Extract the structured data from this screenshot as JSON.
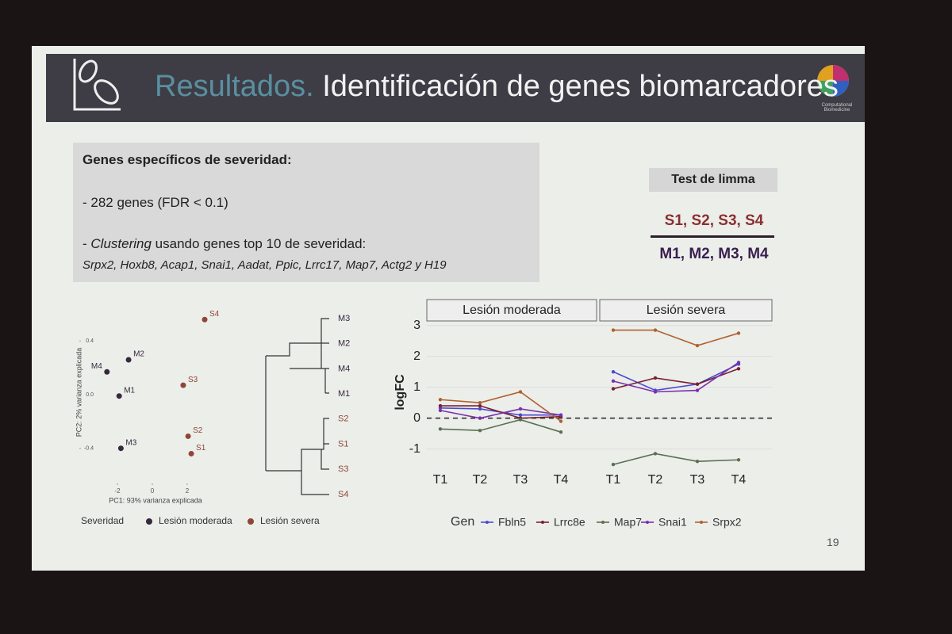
{
  "header": {
    "title_prefix": "Resultados.",
    "title": "Identificación de genes biomarcadores",
    "logo_text": "Computational Biomedicine"
  },
  "box": {
    "heading": "Genes específicos de severidad:",
    "line1": "- 282 genes (FDR < 0.1)",
    "line2_prefix": "- ",
    "line2_italic": "Clustering",
    "line2_rest": " usando genes top 10 de severidad:",
    "genes": "Srpx2, Hoxb8, Acap1, Snai1, Aadat, Ppic, Lrrc17, Map7, Actg2 y H19"
  },
  "limma": {
    "label": "Test de limma",
    "numerator": "S1, S2, S3, S4",
    "denominator": "M1, M2, M3, M4"
  },
  "pca": {
    "type": "scatter",
    "xlabel": "PC1: 93% varianza explicada",
    "ylabel": "PC2: 2% varianza explicada",
    "xlim": [
      -4,
      3.5
    ],
    "ylim": [
      -0.65,
      0.65
    ],
    "xticks": [
      -2,
      0,
      2
    ],
    "yticks": [
      -0.4,
      {
        "value": 0,
        "label": "0.0"
      },
      0.4
    ],
    "legend_title": "Severidad",
    "groups": [
      {
        "name": "Lesión moderada",
        "color": "#35283f"
      },
      {
        "name": "Lesión severa",
        "color": "#8e4636"
      }
    ],
    "points": [
      {
        "label": "M4",
        "x": -2.6,
        "y": 0.17,
        "group": 0
      },
      {
        "label": "M2",
        "x": -1.36,
        "y": 0.26,
        "group": 0
      },
      {
        "label": "M1",
        "x": -1.9,
        "y": -0.01,
        "group": 0
      },
      {
        "label": "M3",
        "x": -1.8,
        "y": -0.4,
        "group": 0
      },
      {
        "label": "S4",
        "x": 3.0,
        "y": 0.56,
        "group": 1
      },
      {
        "label": "S3",
        "x": 1.77,
        "y": 0.07,
        "group": 1
      },
      {
        "label": "S2",
        "x": 2.05,
        "y": -0.31,
        "group": 1
      },
      {
        "label": "S1",
        "x": 2.23,
        "y": -0.44,
        "group": 1
      }
    ]
  },
  "dendrogram": {
    "leaves": [
      "M3",
      "M2",
      "M4",
      "M1",
      "S2",
      "S1",
      "S3",
      "S4"
    ]
  },
  "lines": {
    "type": "line",
    "ylabel": "logFC",
    "facets": [
      "Lesión moderada",
      "Lesión severa"
    ],
    "categories": [
      "T1",
      "T2",
      "T3",
      "T4"
    ],
    "ylim": [
      -1.6,
      3.3
    ],
    "yticks": [
      -1,
      0,
      1,
      2,
      3
    ],
    "legend_title": "Gen",
    "series": [
      {
        "name": "Fbln5",
        "color": "#4a4ad0",
        "values": [
          [
            0.33,
            0.3,
            0.1,
            0.1
          ],
          [
            1.5,
            0.9,
            1.1,
            1.75
          ]
        ]
      },
      {
        "name": "Lrrc8e",
        "color": "#7a2030",
        "values": [
          [
            0.4,
            0.4,
            0.0,
            0.05
          ],
          [
            0.95,
            1.3,
            1.1,
            1.6
          ]
        ]
      },
      {
        "name": "Map7",
        "color": "#5a7050",
        "values": [
          [
            -0.35,
            -0.4,
            -0.05,
            -0.45
          ],
          [
            -1.5,
            -1.15,
            -1.4,
            -1.35
          ]
        ]
      },
      {
        "name": "Snai1",
        "color": "#7a30b0",
        "values": [
          [
            0.25,
            0.0,
            0.3,
            0.1
          ],
          [
            1.2,
            0.85,
            0.9,
            1.8
          ]
        ]
      },
      {
        "name": "Srpx2",
        "color": "#b06030",
        "values": [
          [
            0.6,
            0.5,
            0.85,
            -0.1
          ],
          [
            2.85,
            2.85,
            2.35,
            2.75
          ]
        ]
      }
    ]
  },
  "page_number": "19"
}
